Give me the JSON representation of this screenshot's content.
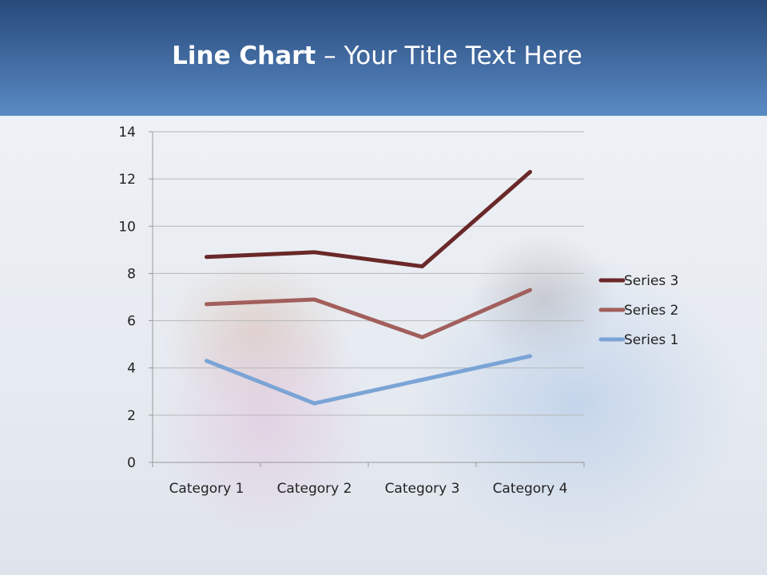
{
  "slide": {
    "title_bold": "Line Chart",
    "title_rest": " – Your Title Text Here"
  },
  "chart_data": {
    "type": "line",
    "title": "",
    "categories": [
      "Category 1",
      "Category 2",
      "Category 3",
      "Category 4"
    ],
    "series": [
      {
        "name": "Series 1",
        "values": [
          4.3,
          2.5,
          3.5,
          4.5
        ],
        "color": "#7ba4d6"
      },
      {
        "name": "Series 2",
        "values": [
          6.7,
          6.9,
          5.3,
          7.3
        ],
        "color": "#a25f5c"
      },
      {
        "name": "Series 3",
        "values": [
          8.7,
          8.9,
          8.3,
          12.3
        ],
        "color": "#6a2828"
      }
    ],
    "ylim": [
      0,
      14
    ],
    "yticks": [
      "0",
      "2",
      "4",
      "6",
      "8",
      "10",
      "12",
      "14"
    ],
    "grid": true,
    "legend": "right"
  }
}
